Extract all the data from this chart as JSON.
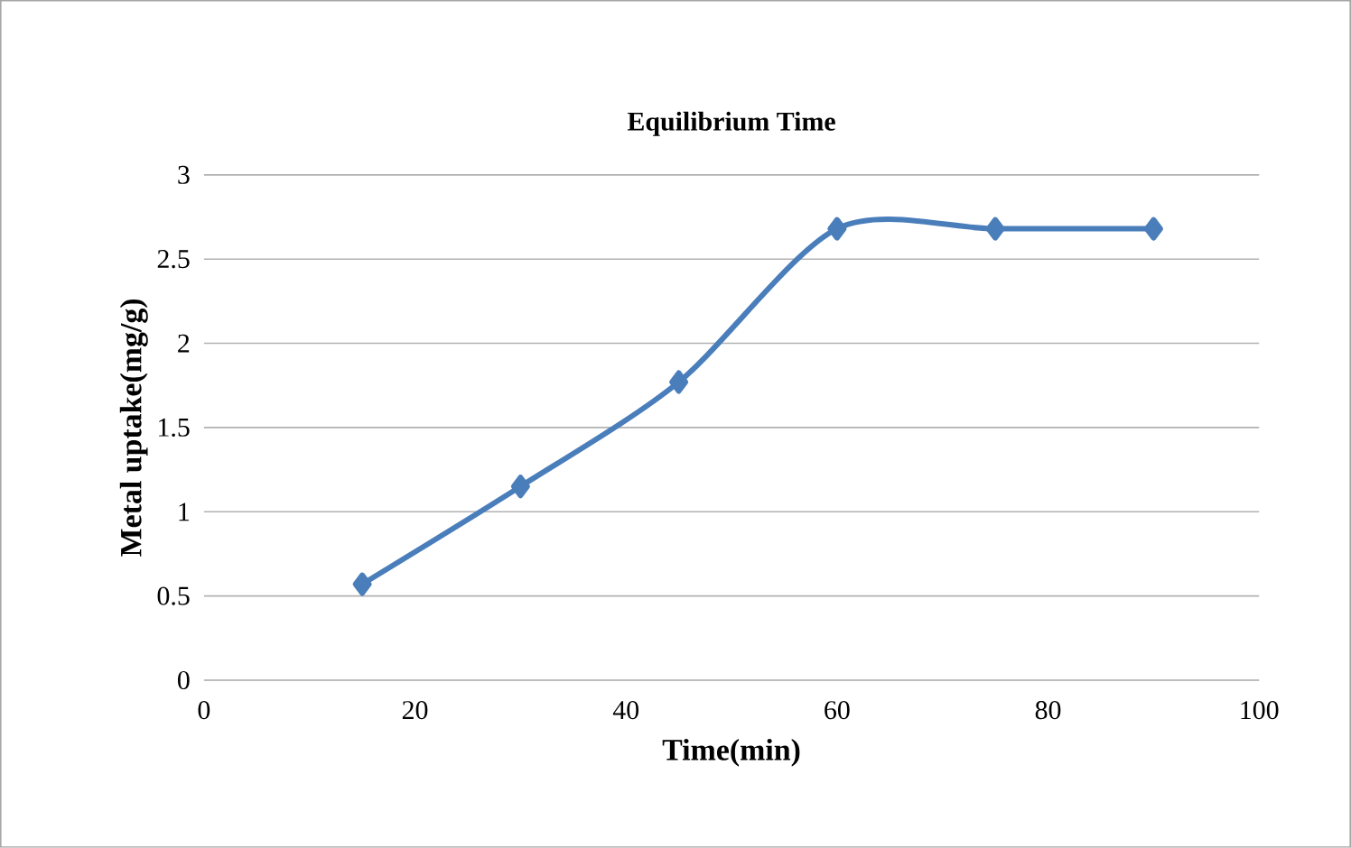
{
  "chart_data": {
    "type": "line",
    "title": "Equilibrium Time",
    "xlabel": "Time(min)",
    "ylabel": "Metal uptake(mg/g)",
    "x": [
      15,
      30,
      45,
      60,
      75,
      90
    ],
    "series": [
      {
        "color": "#4a7ebb",
        "values": [
          0.57,
          1.15,
          1.77,
          2.68,
          2.68,
          2.68
        ]
      }
    ],
    "xlim": [
      0,
      100
    ],
    "xticks": [
      0,
      20,
      40,
      60,
      80,
      100
    ],
    "ylim": [
      0,
      3
    ],
    "yticks": [
      0,
      0.5,
      1,
      1.5,
      2,
      2.5,
      3
    ],
    "grid": "y",
    "marker": "diamond",
    "line_style": "solid"
  }
}
